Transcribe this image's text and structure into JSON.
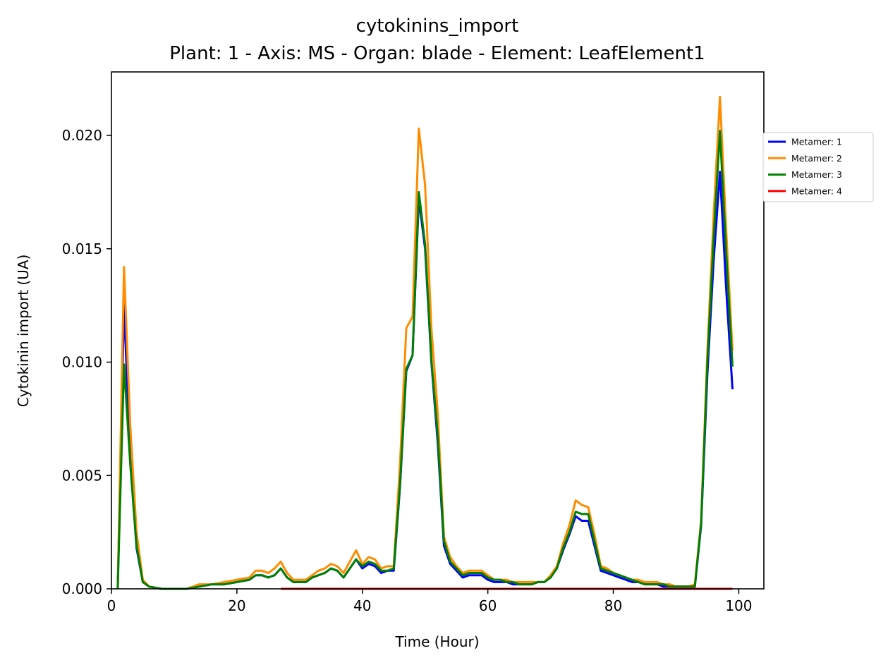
{
  "chart_data": {
    "type": "line",
    "title": "cytokinins_import",
    "subtitle": "Plant: 1 - Axis: MS - Organ: blade - Element: LeafElement1",
    "xlabel": "Time (Hour)",
    "ylabel": "Cytokinin import (UA)",
    "xlim": [
      0,
      104
    ],
    "ylim": [
      0,
      0.0228
    ],
    "x_ticks": [
      "0",
      "20",
      "40",
      "60",
      "80",
      "100"
    ],
    "y_ticks": [
      "0.000",
      "0.005",
      "0.010",
      "0.015",
      "0.020"
    ],
    "grid": false,
    "legend_placement": "right, outside axes",
    "series": [
      {
        "name": "Metamer: 1",
        "color": "#0000ff",
        "x": [
          1,
          2,
          3,
          4,
          5,
          6,
          8,
          10,
          12,
          14,
          16,
          18,
          20,
          22,
          23,
          24,
          25,
          26,
          27,
          28,
          29,
          30,
          31,
          32,
          33,
          34,
          35,
          36,
          37,
          38,
          39,
          40,
          41,
          42,
          43,
          44,
          45,
          46,
          47,
          48,
          49,
          50,
          51,
          52,
          53,
          54,
          55,
          56,
          57,
          58,
          59,
          60,
          61,
          62,
          63,
          64,
          65,
          66,
          67,
          68,
          69,
          70,
          71,
          72,
          73,
          74,
          75,
          76,
          77,
          78,
          79,
          80,
          81,
          82,
          83,
          84,
          85,
          86,
          87,
          88,
          89,
          90,
          91,
          92,
          93,
          94,
          95,
          96,
          97,
          98,
          99
        ],
        "y": [
          0,
          0.0125,
          0.0058,
          0.0018,
          0.0003,
          0.0001,
          0,
          0,
          0,
          0.0001,
          0.0002,
          0.0002,
          0.0003,
          0.0004,
          0.0006,
          0.0006,
          0.0005,
          0.0006,
          0.0009,
          0.0005,
          0.0003,
          0.0003,
          0.0003,
          0.0005,
          0.0006,
          0.0007,
          0.0009,
          0.0008,
          0.0005,
          0.0009,
          0.0013,
          0.0009,
          0.0011,
          0.001,
          0.0007,
          0.0008,
          0.0008,
          0.0045,
          0.0096,
          0.0103,
          0.0172,
          0.015,
          0.01,
          0.0065,
          0.0019,
          0.0011,
          0.0008,
          0.0005,
          0.0006,
          0.0006,
          0.0006,
          0.0004,
          0.0003,
          0.0003,
          0.0003,
          0.0002,
          0.0002,
          0.0002,
          0.0002,
          0.0003,
          0.0003,
          0.0005,
          0.0009,
          0.0017,
          0.0024,
          0.0032,
          0.003,
          0.003,
          0.0019,
          0.0008,
          0.0007,
          0.0006,
          0.0005,
          0.0004,
          0.0003,
          0.0003,
          0.0002,
          0.0002,
          0.0002,
          0.0001,
          0.0001,
          0.0001,
          0.0001,
          0.0001,
          0.0001,
          0.0028,
          0.0095,
          0.0145,
          0.0184,
          0.0132,
          0.0088
        ]
      },
      {
        "name": "Metamer: 2",
        "color": "#ff8c00",
        "x": [
          1,
          2,
          3,
          4,
          5,
          6,
          8,
          10,
          12,
          14,
          16,
          18,
          20,
          22,
          23,
          24,
          25,
          26,
          27,
          28,
          29,
          30,
          31,
          32,
          33,
          34,
          35,
          36,
          37,
          38,
          39,
          40,
          41,
          42,
          43,
          44,
          45,
          46,
          47,
          48,
          49,
          50,
          51,
          52,
          53,
          54,
          55,
          56,
          57,
          58,
          59,
          60,
          61,
          62,
          63,
          64,
          65,
          66,
          67,
          68,
          69,
          70,
          71,
          72,
          73,
          74,
          75,
          76,
          77,
          78,
          79,
          80,
          81,
          82,
          83,
          84,
          85,
          86,
          87,
          88,
          89,
          90,
          91,
          92,
          93,
          94,
          95,
          96,
          97,
          98,
          99
        ],
        "y": [
          0,
          0.0142,
          0.0072,
          0.0025,
          0.0004,
          0.0001,
          0,
          0,
          0,
          0.0002,
          0.0002,
          0.0003,
          0.0004,
          0.0005,
          0.0008,
          0.0008,
          0.0007,
          0.0009,
          0.0012,
          0.0007,
          0.0004,
          0.0004,
          0.0004,
          0.0006,
          0.0008,
          0.0009,
          0.0011,
          0.001,
          0.0007,
          0.0012,
          0.0017,
          0.0011,
          0.0014,
          0.0013,
          0.0009,
          0.001,
          0.001,
          0.0055,
          0.0115,
          0.012,
          0.0203,
          0.0178,
          0.0115,
          0.0078,
          0.0023,
          0.0014,
          0.001,
          0.0007,
          0.0008,
          0.0008,
          0.0008,
          0.0006,
          0.0004,
          0.0004,
          0.0004,
          0.0003,
          0.0003,
          0.0003,
          0.0003,
          0.0003,
          0.0003,
          0.0006,
          0.001,
          0.002,
          0.0028,
          0.0039,
          0.0037,
          0.0036,
          0.0024,
          0.001,
          0.0009,
          0.0007,
          0.0006,
          0.0005,
          0.0004,
          0.0004,
          0.0003,
          0.0003,
          0.0003,
          0.0002,
          0.0002,
          0.0001,
          0.0001,
          0.0001,
          0.0002,
          0.003,
          0.0105,
          0.0165,
          0.0217,
          0.0158,
          0.0105
        ]
      },
      {
        "name": "Metamer: 3",
        "color": "#008000",
        "x": [
          1,
          2,
          3,
          4,
          5,
          6,
          8,
          10,
          12,
          14,
          16,
          18,
          20,
          22,
          23,
          24,
          25,
          26,
          27,
          28,
          29,
          30,
          31,
          32,
          33,
          34,
          35,
          36,
          37,
          38,
          39,
          40,
          41,
          42,
          43,
          44,
          45,
          46,
          47,
          48,
          49,
          50,
          51,
          52,
          53,
          54,
          55,
          56,
          57,
          58,
          59,
          60,
          61,
          62,
          63,
          64,
          65,
          66,
          67,
          68,
          69,
          70,
          71,
          72,
          73,
          74,
          75,
          76,
          77,
          78,
          79,
          80,
          81,
          82,
          83,
          84,
          85,
          86,
          87,
          88,
          89,
          90,
          91,
          92,
          93,
          94,
          95,
          96,
          97,
          98,
          99
        ],
        "y": [
          0,
          0.0099,
          0.0055,
          0.0019,
          0.0003,
          0.0001,
          0,
          0,
          0,
          0.0001,
          0.0002,
          0.0002,
          0.0003,
          0.0004,
          0.0006,
          0.0006,
          0.0005,
          0.0006,
          0.0009,
          0.0005,
          0.0003,
          0.0003,
          0.0003,
          0.0005,
          0.0006,
          0.0007,
          0.0009,
          0.0008,
          0.0005,
          0.0009,
          0.0013,
          0.001,
          0.0012,
          0.0011,
          0.0008,
          0.0008,
          0.0009,
          0.0046,
          0.0097,
          0.0103,
          0.0175,
          0.0152,
          0.0101,
          0.0068,
          0.0021,
          0.0012,
          0.0009,
          0.0006,
          0.0007,
          0.0007,
          0.0007,
          0.0005,
          0.0004,
          0.0004,
          0.0003,
          0.0003,
          0.0002,
          0.0002,
          0.0002,
          0.0003,
          0.0003,
          0.0005,
          0.0009,
          0.0018,
          0.0025,
          0.0034,
          0.0033,
          0.0033,
          0.0021,
          0.0009,
          0.0008,
          0.0007,
          0.0006,
          0.0005,
          0.0004,
          0.0003,
          0.0002,
          0.0002,
          0.0002,
          0.0002,
          0.0001,
          0.0001,
          0.0001,
          0.0001,
          0.0001,
          0.0029,
          0.01,
          0.0155,
          0.0202,
          0.0148,
          0.0098
        ]
      },
      {
        "name": "Metamer: 4",
        "color": "#ff0000",
        "x": [
          27,
          99
        ],
        "y": [
          0,
          0
        ]
      }
    ]
  }
}
